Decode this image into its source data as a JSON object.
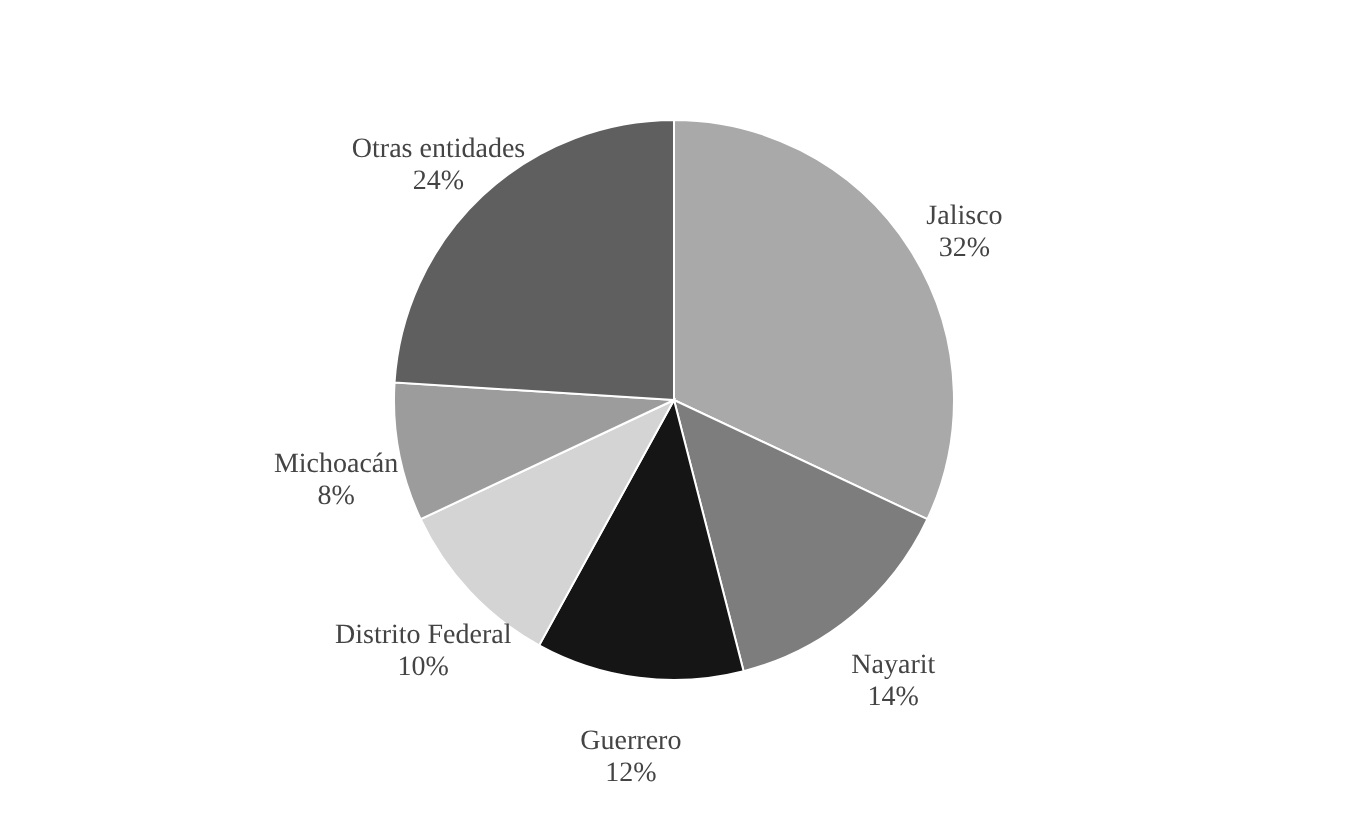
{
  "chart_data": {
    "type": "pie",
    "categories": [
      "Jalisco",
      "Nayarit",
      "Guerrero",
      "Distrito Federal",
      "Michoacán",
      "Otras entidades"
    ],
    "values": [
      32,
      14,
      12,
      10,
      8,
      24
    ],
    "value_labels": [
      "32%",
      "14%",
      "12%",
      "10%",
      "8%",
      "24%"
    ],
    "colors": [
      "#a9a9a9",
      "#7d7d7d",
      "#151515",
      "#d4d4d4",
      "#9c9c9c",
      "#5f5f5f"
    ]
  }
}
